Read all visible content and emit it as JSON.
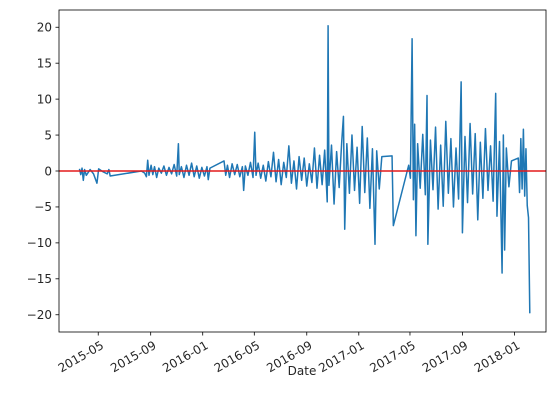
{
  "chart_data": {
    "type": "line",
    "title": "",
    "xlabel": "Date",
    "ylabel": "",
    "x_ticks": [
      "2015-05",
      "2015-09",
      "2016-01",
      "2016-05",
      "2016-09",
      "2017-01",
      "2017-05",
      "2017-09",
      "2018-01"
    ],
    "y_ticks": [
      -20,
      -15,
      -10,
      -5,
      0,
      5,
      10,
      15,
      20
    ],
    "xlim": [
      "2015-01-29",
      "2018-03-16"
    ],
    "ylim": [
      -22.4,
      22.4
    ],
    "grid": false,
    "reference_line": {
      "y": 0,
      "color": "#e41a1c"
    },
    "series": [
      {
        "color": "#1f77b4",
        "points": [
          [
            "2015-03-18",
            0.3
          ],
          [
            "2015-03-21",
            -0.5
          ],
          [
            "2015-03-24",
            0.4
          ],
          [
            "2015-03-27",
            -1.3
          ],
          [
            "2015-03-30",
            0.2
          ],
          [
            "2015-04-03",
            -0.6
          ],
          [
            "2015-04-12",
            0.2
          ],
          [
            "2015-04-20",
            -0.4
          ],
          [
            "2015-04-28",
            -1.7
          ],
          [
            "2015-05-02",
            0.3
          ],
          [
            "2015-05-12",
            -0.1
          ],
          [
            "2015-05-22",
            -0.4
          ],
          [
            "2015-05-26",
            0.2
          ],
          [
            "2015-05-29",
            -0.7
          ],
          [
            "2015-08-10",
            0.0
          ],
          [
            "2015-08-18",
            -0.3
          ],
          [
            "2015-08-22",
            -0.8
          ],
          [
            "2015-08-25",
            1.5
          ],
          [
            "2015-08-28",
            -0.6
          ],
          [
            "2015-09-02",
            0.8
          ],
          [
            "2015-09-06",
            -0.5
          ],
          [
            "2015-09-10",
            0.6
          ],
          [
            "2015-09-15",
            -0.9
          ],
          [
            "2015-09-20",
            0.4
          ],
          [
            "2015-09-26",
            -0.3
          ],
          [
            "2015-10-02",
            0.7
          ],
          [
            "2015-10-08",
            -0.6
          ],
          [
            "2015-10-14",
            0.5
          ],
          [
            "2015-10-20",
            -0.4
          ],
          [
            "2015-10-26",
            0.9
          ],
          [
            "2015-11-01",
            -0.7
          ],
          [
            "2015-11-05",
            3.8
          ],
          [
            "2015-11-07",
            -0.5
          ],
          [
            "2015-11-12",
            0.6
          ],
          [
            "2015-11-18",
            -0.9
          ],
          [
            "2015-11-24",
            0.8
          ],
          [
            "2015-11-30",
            -0.6
          ],
          [
            "2015-12-06",
            1.1
          ],
          [
            "2015-12-12",
            -0.8
          ],
          [
            "2015-12-18",
            0.7
          ],
          [
            "2015-12-24",
            -1.0
          ],
          [
            "2015-12-30",
            0.5
          ],
          [
            "2016-01-05",
            -0.7
          ],
          [
            "2016-01-11",
            0.6
          ],
          [
            "2016-01-14",
            -1.2
          ],
          [
            "2016-01-18",
            0.4
          ],
          [
            "2016-02-20",
            1.4
          ],
          [
            "2016-02-24",
            -0.6
          ],
          [
            "2016-02-28",
            0.8
          ],
          [
            "2016-03-04",
            -0.9
          ],
          [
            "2016-03-10",
            1.0
          ],
          [
            "2016-03-16",
            -0.5
          ],
          [
            "2016-03-22",
            0.9
          ],
          [
            "2016-03-28",
            -0.8
          ],
          [
            "2016-04-03",
            0.6
          ],
          [
            "2016-04-06",
            -2.7
          ],
          [
            "2016-04-10",
            0.7
          ],
          [
            "2016-04-16",
            -0.6
          ],
          [
            "2016-04-22",
            1.2
          ],
          [
            "2016-04-28",
            -0.9
          ],
          [
            "2016-05-02",
            5.4
          ],
          [
            "2016-05-05",
            -0.6
          ],
          [
            "2016-05-10",
            1.1
          ],
          [
            "2016-05-16",
            -1.0
          ],
          [
            "2016-05-22",
            0.8
          ],
          [
            "2016-05-28",
            -1.4
          ],
          [
            "2016-06-03",
            1.3
          ],
          [
            "2016-06-09",
            -0.8
          ],
          [
            "2016-06-15",
            2.6
          ],
          [
            "2016-06-21",
            -1.5
          ],
          [
            "2016-06-27",
            1.6
          ],
          [
            "2016-07-03",
            -1.9
          ],
          [
            "2016-07-09",
            1.2
          ],
          [
            "2016-07-15",
            -0.9
          ],
          [
            "2016-07-21",
            3.5
          ],
          [
            "2016-07-27",
            -1.7
          ],
          [
            "2016-08-02",
            1.4
          ],
          [
            "2016-08-08",
            -2.5
          ],
          [
            "2016-08-14",
            2.0
          ],
          [
            "2016-08-20",
            -1.3
          ],
          [
            "2016-08-26",
            1.8
          ],
          [
            "2016-09-01",
            -2.1
          ],
          [
            "2016-09-07",
            1.0
          ],
          [
            "2016-09-13",
            -1.6
          ],
          [
            "2016-09-19",
            3.2
          ],
          [
            "2016-09-25",
            -2.4
          ],
          [
            "2016-10-01",
            2.2
          ],
          [
            "2016-10-07",
            -1.9
          ],
          [
            "2016-10-13",
            2.9
          ],
          [
            "2016-10-19",
            -4.3
          ],
          [
            "2016-10-21",
            20.2
          ],
          [
            "2016-10-23",
            -2.0
          ],
          [
            "2016-10-29",
            3.6
          ],
          [
            "2016-11-04",
            -4.6
          ],
          [
            "2016-11-10",
            2.7
          ],
          [
            "2016-11-16",
            -2.3
          ],
          [
            "2016-11-22",
            4.1
          ],
          [
            "2016-11-26",
            7.6
          ],
          [
            "2016-11-29",
            -8.1
          ],
          [
            "2016-12-04",
            3.8
          ],
          [
            "2016-12-10",
            -3.1
          ],
          [
            "2016-12-16",
            5.0
          ],
          [
            "2016-12-22",
            -2.7
          ],
          [
            "2016-12-28",
            3.3
          ],
          [
            "2017-01-03",
            -4.5
          ],
          [
            "2017-01-09",
            6.2
          ],
          [
            "2017-01-15",
            -3.0
          ],
          [
            "2017-01-21",
            4.6
          ],
          [
            "2017-01-27",
            -5.2
          ],
          [
            "2017-02-02",
            3.1
          ],
          [
            "2017-02-08",
            -10.2
          ],
          [
            "2017-02-12",
            2.8
          ],
          [
            "2017-02-18",
            -2.5
          ],
          [
            "2017-02-24",
            2.0
          ],
          [
            "2017-03-20",
            2.1
          ],
          [
            "2017-03-23",
            -7.6
          ],
          [
            "2017-04-28",
            0.8
          ],
          [
            "2017-05-02",
            -1.0
          ],
          [
            "2017-05-06",
            18.4
          ],
          [
            "2017-05-09",
            -4.0
          ],
          [
            "2017-05-12",
            6.5
          ],
          [
            "2017-05-15",
            -9.0
          ],
          [
            "2017-05-19",
            3.8
          ],
          [
            "2017-05-25",
            -2.4
          ],
          [
            "2017-05-31",
            5.1
          ],
          [
            "2017-06-06",
            -3.3
          ],
          [
            "2017-06-10",
            10.5
          ],
          [
            "2017-06-12",
            -10.2
          ],
          [
            "2017-06-18",
            4.3
          ],
          [
            "2017-06-24",
            -2.6
          ],
          [
            "2017-06-30",
            6.1
          ],
          [
            "2017-07-06",
            -5.3
          ],
          [
            "2017-07-12",
            3.6
          ],
          [
            "2017-07-18",
            -4.9
          ],
          [
            "2017-07-24",
            6.9
          ],
          [
            "2017-07-30",
            -3.1
          ],
          [
            "2017-08-05",
            4.5
          ],
          [
            "2017-08-11",
            -5.0
          ],
          [
            "2017-08-17",
            3.2
          ],
          [
            "2017-08-23",
            -3.9
          ],
          [
            "2017-08-29",
            12.4
          ],
          [
            "2017-09-01",
            -8.6
          ],
          [
            "2017-09-07",
            4.8
          ],
          [
            "2017-09-13",
            -4.4
          ],
          [
            "2017-09-19",
            6.6
          ],
          [
            "2017-09-25",
            -3.2
          ],
          [
            "2017-10-01",
            5.2
          ],
          [
            "2017-10-07",
            -6.8
          ],
          [
            "2017-10-13",
            4.0
          ],
          [
            "2017-10-19",
            -3.8
          ],
          [
            "2017-10-25",
            5.9
          ],
          [
            "2017-10-31",
            -2.7
          ],
          [
            "2017-11-06",
            3.5
          ],
          [
            "2017-11-12",
            -4.2
          ],
          [
            "2017-11-18",
            10.8
          ],
          [
            "2017-11-21",
            -6.3
          ],
          [
            "2017-11-27",
            4.1
          ],
          [
            "2017-12-03",
            -14.2
          ],
          [
            "2017-12-06",
            5.0
          ],
          [
            "2017-12-09",
            -11.0
          ],
          [
            "2017-12-13",
            3.2
          ],
          [
            "2017-12-19",
            -2.2
          ],
          [
            "2017-12-25",
            1.4
          ],
          [
            "2018-01-10",
            1.8
          ],
          [
            "2018-01-13",
            -3.0
          ],
          [
            "2018-01-16",
            4.5
          ],
          [
            "2018-01-19",
            -2.5
          ],
          [
            "2018-01-22",
            5.8
          ],
          [
            "2018-01-25",
            -3.5
          ],
          [
            "2018-01-28",
            3.1
          ],
          [
            "2018-01-31",
            -4.8
          ],
          [
            "2018-02-03",
            -6.5
          ],
          [
            "2018-02-06",
            -19.8
          ]
        ]
      }
    ]
  }
}
